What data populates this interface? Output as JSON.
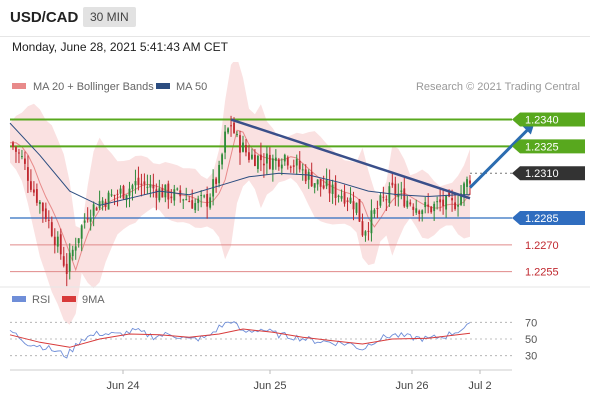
{
  "header": {
    "symbol": "USD/CAD",
    "timeframe": "30 MIN"
  },
  "datetime": "Monday, June 28, 2021 5:41:43 AM CET",
  "legend": {
    "ma20": "MA 20 + Bollinger Bands",
    "ma50": "MA 50",
    "credit": "Research © 2021 Trading Central"
  },
  "colors": {
    "up": "#2e8b3a",
    "down": "#c0282f",
    "ma20": "#e88a8a",
    "ma50": "#2c4d80",
    "band": "#f6c9c9",
    "resist": "#58a81e",
    "support": "#2f6dbf",
    "trend": "#3a4f8a",
    "rsi": "#6f8ed8",
    "rsi_ma": "#d83a3a"
  },
  "chart_data": {
    "type": "candlestick",
    "x_ticks": [
      "Jun 24",
      "Jun 25",
      "Jun 26",
      "Jul 2"
    ],
    "price_range": [
      1.2247,
      1.2348
    ],
    "levels": [
      {
        "label": "1.2340",
        "value": 1.234,
        "kind": "resistance"
      },
      {
        "label": "1.2325",
        "value": 1.2325,
        "kind": "resistance"
      },
      {
        "label": "1.2310",
        "value": 1.231,
        "kind": "last"
      },
      {
        "label": "1.2285",
        "value": 1.2285,
        "kind": "support"
      },
      {
        "label": "1.2270",
        "value": 1.227,
        "kind": "minor"
      },
      {
        "label": "1.2255",
        "value": 1.2255,
        "kind": "minor"
      }
    ],
    "price_path": [
      [
        0,
        1.2327
      ],
      [
        4,
        1.2318
      ],
      [
        8,
        1.23
      ],
      [
        12,
        1.2287
      ],
      [
        16,
        1.227
      ],
      [
        19,
        1.2256
      ],
      [
        22,
        1.2272
      ],
      [
        26,
        1.2288
      ],
      [
        30,
        1.2294
      ],
      [
        34,
        1.2297
      ],
      [
        38,
        1.23
      ],
      [
        42,
        1.2304
      ],
      [
        46,
        1.2303
      ],
      [
        50,
        1.23
      ],
      [
        54,
        1.2298
      ],
      [
        58,
        1.2297
      ],
      [
        62,
        1.2293
      ],
      [
        66,
        1.2295
      ],
      [
        70,
        1.231
      ],
      [
        72,
        1.233
      ],
      [
        74,
        1.2338
      ],
      [
        76,
        1.2328
      ],
      [
        80,
        1.232
      ],
      [
        84,
        1.2318
      ],
      [
        88,
        1.2317
      ],
      [
        92,
        1.232
      ],
      [
        96,
        1.2314
      ],
      [
        100,
        1.2308
      ],
      [
        104,
        1.2303
      ],
      [
        108,
        1.23
      ],
      [
        112,
        1.2298
      ],
      [
        116,
        1.2292
      ],
      [
        118,
        1.2278
      ],
      [
        120,
        1.2282
      ],
      [
        124,
        1.2293
      ],
      [
        128,
        1.23
      ],
      [
        132,
        1.2296
      ],
      [
        136,
        1.2292
      ],
      [
        140,
        1.229
      ],
      [
        144,
        1.2293
      ],
      [
        148,
        1.2292
      ],
      [
        150,
        1.2296
      ],
      [
        152,
        1.2302
      ],
      [
        154,
        1.2308
      ]
    ],
    "ma50_path": [
      [
        0,
        1.2338
      ],
      [
        10,
        1.232
      ],
      [
        20,
        1.23
      ],
      [
        30,
        1.2292
      ],
      [
        40,
        1.2296
      ],
      [
        50,
        1.23
      ],
      [
        60,
        1.2298
      ],
      [
        70,
        1.2303
      ],
      [
        80,
        1.2308
      ],
      [
        90,
        1.231
      ],
      [
        100,
        1.2309
      ],
      [
        110,
        1.2305
      ],
      [
        120,
        1.23
      ],
      [
        130,
        1.2298
      ],
      [
        140,
        1.2297
      ],
      [
        150,
        1.2298
      ],
      [
        154,
        1.2298
      ]
    ],
    "trendline": {
      "from": [
        74,
        1.234
      ],
      "to": [
        154,
        1.2296
      ]
    },
    "projection": {
      "from": [
        154,
        1.2302
      ],
      "to": [
        165,
        1.234
      ]
    },
    "rsi": {
      "label": "RSI",
      "ma_label": "9MA",
      "ticks": [
        "70",
        "50",
        "30"
      ],
      "range": [
        20,
        80
      ],
      "path": [
        [
          0,
          60
        ],
        [
          6,
          45
        ],
        [
          12,
          40
        ],
        [
          19,
          30
        ],
        [
          24,
          50
        ],
        [
          30,
          57
        ],
        [
          36,
          55
        ],
        [
          42,
          60
        ],
        [
          48,
          53
        ],
        [
          54,
          56
        ],
        [
          60,
          49
        ],
        [
          66,
          52
        ],
        [
          70,
          64
        ],
        [
          74,
          72
        ],
        [
          78,
          58
        ],
        [
          84,
          62
        ],
        [
          90,
          55
        ],
        [
          96,
          52
        ],
        [
          102,
          48
        ],
        [
          108,
          46
        ],
        [
          114,
          44
        ],
        [
          118,
          38
        ],
        [
          122,
          48
        ],
        [
          128,
          55
        ],
        [
          134,
          52
        ],
        [
          140,
          50
        ],
        [
          146,
          54
        ],
        [
          150,
          60
        ],
        [
          154,
          66
        ]
      ],
      "ma_path": [
        [
          0,
          55
        ],
        [
          10,
          46
        ],
        [
          20,
          40
        ],
        [
          30,
          50
        ],
        [
          40,
          56
        ],
        [
          50,
          55
        ],
        [
          60,
          52
        ],
        [
          70,
          56
        ],
        [
          78,
          62
        ],
        [
          88,
          58
        ],
        [
          98,
          52
        ],
        [
          108,
          48
        ],
        [
          118,
          44
        ],
        [
          128,
          50
        ],
        [
          140,
          51
        ],
        [
          154,
          57
        ]
      ]
    }
  }
}
